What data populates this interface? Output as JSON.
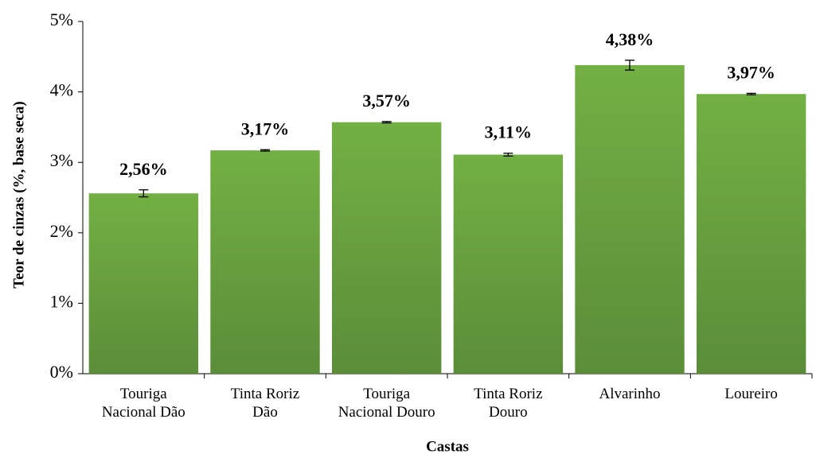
{
  "chart_data": {
    "type": "bar",
    "x_label": "Castas",
    "y_label": "Teor de cinzas (%, base seca)",
    "categories": [
      "Touriga\nNacional Dão",
      "Tinta Roriz\nDão",
      "Touriga\nNacional Douro",
      "Tinta Roriz\nDouro",
      "Alvarinho",
      "Loureiro"
    ],
    "values": [
      2.56,
      3.17,
      3.57,
      3.11,
      4.38,
      3.97
    ],
    "value_labels": [
      "2,56%",
      "3,17%",
      "3,57%",
      "3,11%",
      "4,38%",
      "3,97%"
    ],
    "errors": [
      0.05,
      0.01,
      0.01,
      0.02,
      0.07,
      0.01
    ],
    "color": "#6aa341",
    "ylim": [
      0,
      5
    ],
    "yticks": [
      {
        "value": 0,
        "label": "0%"
      },
      {
        "value": 1,
        "label": "1%"
      },
      {
        "value": 2,
        "label": "2%"
      },
      {
        "value": 3,
        "label": "3%"
      },
      {
        "value": 4,
        "label": "4%"
      },
      {
        "value": 5,
        "label": "5%"
      }
    ],
    "grid": false
  }
}
